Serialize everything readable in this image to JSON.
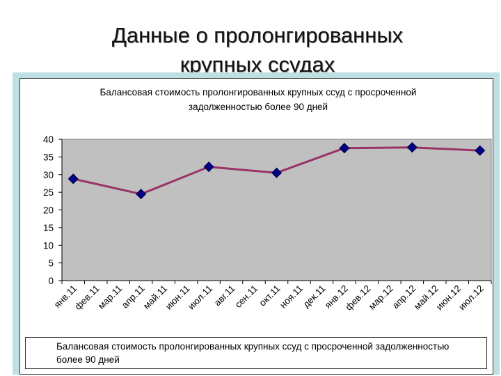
{
  "slide": {
    "title_line1": "Данные о пролонгированных",
    "title_line2": "крупных ссудах"
  },
  "colors": {
    "frame": "#bfe0e3",
    "plot_bg": "#c0c0c0",
    "line": "#993366",
    "marker": "#000080"
  },
  "chart_data": {
    "type": "line",
    "title": "Балансовая стоимость пролонгированных крупных ссуд с просроченной задолженностью более 90 дней",
    "title_lines": [
      "Балансовая стоимость пролонгированных крупных ссуд с просроченной",
      "задолженностью более 90 дней"
    ],
    "categories": [
      "янв.11",
      "фев.11",
      "мар.11",
      "апр.11",
      "май.11",
      "июн.11",
      "июл.11",
      "авг.11",
      "сен.11",
      "окт.11",
      "ноя.11",
      "дек.11",
      "янв.12",
      "фев.12",
      "мар.12",
      "апр.12",
      "май.12",
      "июн.12",
      "июл.12"
    ],
    "series": [
      {
        "name": "Балансовая стоимость пролонгированных крупных ссуд с просроченной задолженностью более 90 дней",
        "values": [
          28.8,
          null,
          null,
          24.5,
          null,
          null,
          32.2,
          null,
          null,
          30.5,
          null,
          null,
          37.5,
          null,
          null,
          37.7,
          null,
          null,
          36.8
        ]
      }
    ],
    "ylim": [
      0,
      40
    ],
    "yticks": [
      0,
      5,
      10,
      15,
      20,
      25,
      30,
      35,
      40
    ],
    "grid": false,
    "legend": "bottom"
  },
  "legend": {
    "line1": "Балансовая стоимость пролонгированных крупных ссуд с просроченной задолженностью",
    "line2": "более 90 дней"
  }
}
